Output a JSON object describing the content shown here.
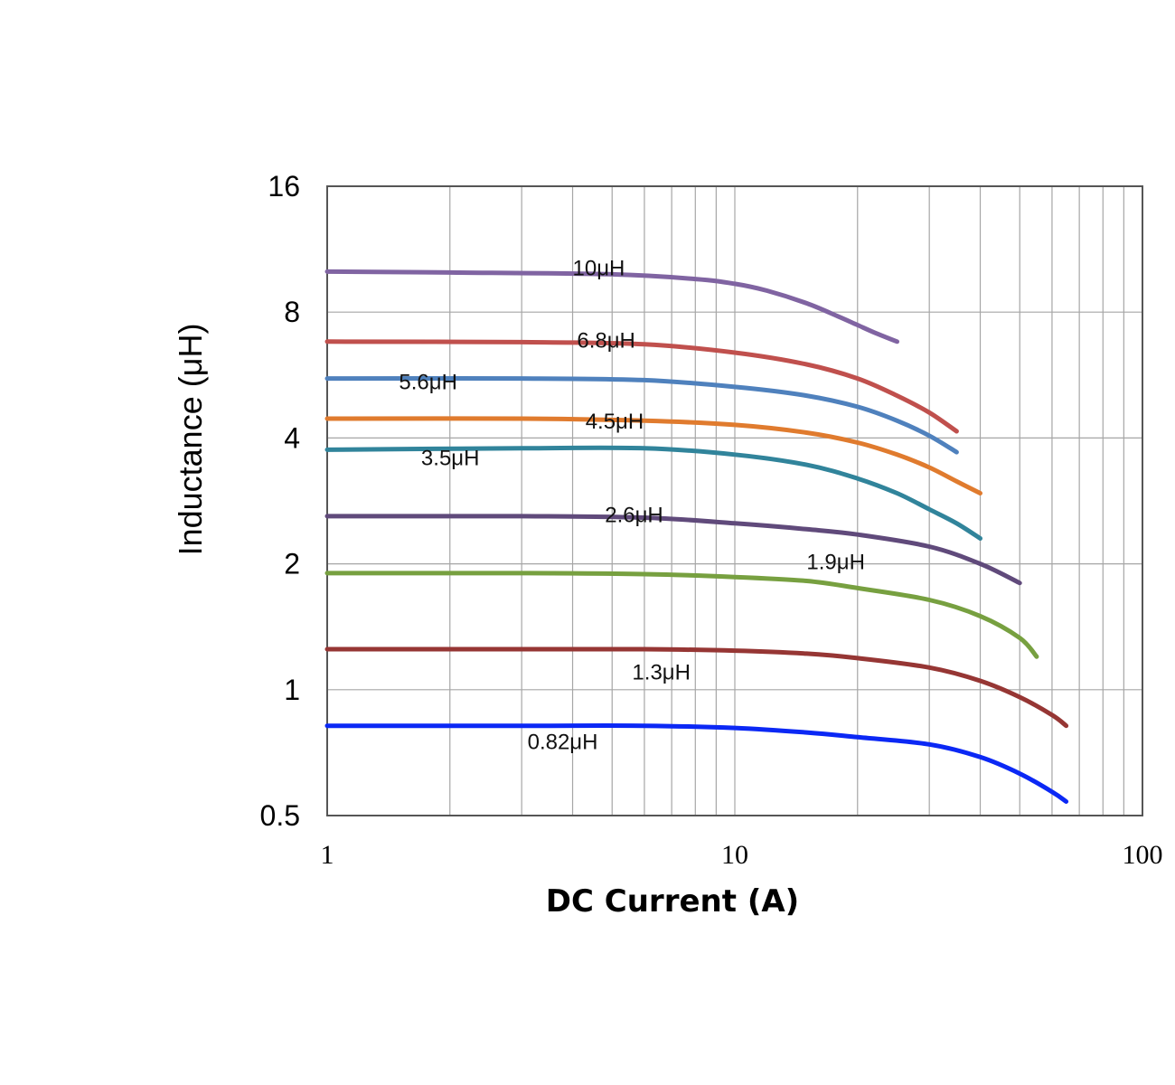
{
  "chart_data": {
    "type": "line",
    "title": "",
    "xlabel": "DC Current (A)",
    "ylabel": "Inductance (μH)",
    "xscale": "log",
    "yscale": "log2",
    "xlim": [
      1,
      100
    ],
    "ylim": [
      0.5,
      16
    ],
    "x_ticks": [
      "1",
      "10",
      "100"
    ],
    "y_ticks": [
      "0.5",
      "1",
      "2",
      "4",
      "8",
      "16"
    ],
    "grid": true,
    "series": [
      {
        "name": "10μH",
        "color": "#8064a2",
        "x": [
          1,
          2,
          5,
          8,
          10,
          12,
          15,
          18,
          20,
          22,
          25
        ],
        "y": [
          10.0,
          9.95,
          9.85,
          9.6,
          9.35,
          9.0,
          8.4,
          7.8,
          7.45,
          7.15,
          6.8
        ]
      },
      {
        "name": "6.8μH",
        "color": "#c0504d",
        "x": [
          1,
          3,
          6,
          10,
          15,
          20,
          25,
          30,
          35
        ],
        "y": [
          6.8,
          6.78,
          6.7,
          6.4,
          6.0,
          5.55,
          5.05,
          4.6,
          4.15
        ]
      },
      {
        "name": "5.6μH",
        "color": "#4f81bd",
        "x": [
          1,
          3,
          6,
          10,
          15,
          20,
          25,
          30,
          35
        ],
        "y": [
          5.55,
          5.55,
          5.5,
          5.3,
          5.05,
          4.75,
          4.4,
          4.05,
          3.7
        ]
      },
      {
        "name": "4.5μH",
        "color": "#e07b2e",
        "x": [
          1,
          3,
          6,
          10,
          15,
          20,
          25,
          30,
          35,
          40
        ],
        "y": [
          4.45,
          4.45,
          4.4,
          4.3,
          4.12,
          3.9,
          3.65,
          3.4,
          3.15,
          2.95
        ]
      },
      {
        "name": "3.5μH",
        "color": "#31849b",
        "x": [
          1,
          3,
          6,
          10,
          15,
          20,
          25,
          30,
          35,
          40
        ],
        "y": [
          3.75,
          3.78,
          3.78,
          3.65,
          3.45,
          3.2,
          2.95,
          2.7,
          2.5,
          2.3
        ]
      },
      {
        "name": "2.6μH",
        "color": "#604a7b",
        "x": [
          1,
          3,
          6,
          10,
          15,
          20,
          30,
          40,
          50
        ],
        "y": [
          2.6,
          2.6,
          2.58,
          2.5,
          2.42,
          2.35,
          2.2,
          2.0,
          1.8
        ]
      },
      {
        "name": "1.9μH",
        "color": "#77a040",
        "x": [
          1,
          3,
          6,
          10,
          15,
          20,
          30,
          40,
          50,
          55
        ],
        "y": [
          1.9,
          1.9,
          1.89,
          1.86,
          1.82,
          1.75,
          1.64,
          1.5,
          1.33,
          1.2
        ]
      },
      {
        "name": "1.3μH",
        "color": "#963634",
        "x": [
          1,
          3,
          6,
          10,
          15,
          20,
          30,
          40,
          50,
          60,
          65
        ],
        "y": [
          1.25,
          1.25,
          1.25,
          1.24,
          1.22,
          1.19,
          1.13,
          1.05,
          0.96,
          0.87,
          0.82
        ]
      },
      {
        "name": "0.82μH",
        "color": "#0b28f5",
        "x": [
          1,
          3,
          6,
          10,
          15,
          20,
          30,
          40,
          50,
          60,
          65
        ],
        "y": [
          0.82,
          0.82,
          0.82,
          0.81,
          0.79,
          0.77,
          0.74,
          0.69,
          0.63,
          0.57,
          0.54
        ]
      }
    ],
    "annotations": [
      {
        "text": "10μH",
        "x": 4.0,
        "y": 10.2
      },
      {
        "text": "6.8μH",
        "x": 4.1,
        "y": 6.85
      },
      {
        "text": "5.6μH",
        "x": 1.5,
        "y": 5.45
      },
      {
        "text": "4.5μH",
        "x": 4.3,
        "y": 4.38
      },
      {
        "text": "3.5μH",
        "x": 1.7,
        "y": 3.58
      },
      {
        "text": "2.6μH",
        "x": 4.8,
        "y": 2.62
      },
      {
        "text": "1.9μH",
        "x": 15.0,
        "y": 2.02
      },
      {
        "text": "1.3μH",
        "x": 5.6,
        "y": 1.1
      },
      {
        "text": "0.82μH",
        "x": 3.1,
        "y": 0.75
      }
    ]
  }
}
